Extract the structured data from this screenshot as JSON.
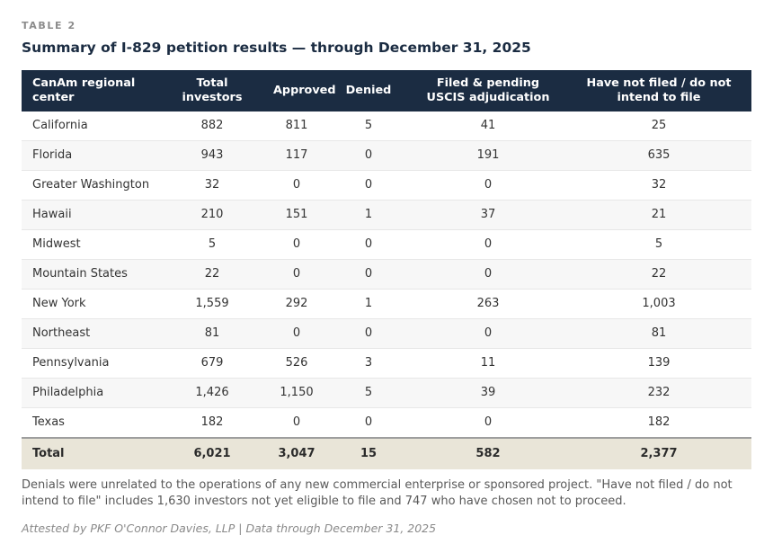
{
  "header": {
    "eyebrow": "TABLE 2",
    "title": "Summary of I-829 petition results — through December 31, 2025"
  },
  "table": {
    "columns": [
      "CanAm regional center",
      "Total investors",
      "Approved",
      "Denied",
      "Filed & pending USCIS adjudication",
      "Have not filed / do not intend to file"
    ],
    "rows": [
      [
        "California",
        "882",
        "811",
        "5",
        "41",
        "25"
      ],
      [
        "Florida",
        "943",
        "117",
        "0",
        "191",
        "635"
      ],
      [
        "Greater Washington",
        "32",
        "0",
        "0",
        "0",
        "32"
      ],
      [
        "Hawaii",
        "210",
        "151",
        "1",
        "37",
        "21"
      ],
      [
        "Midwest",
        "5",
        "0",
        "0",
        "0",
        "5"
      ],
      [
        "Mountain States",
        "22",
        "0",
        "0",
        "0",
        "22"
      ],
      [
        "New York",
        "1,559",
        "292",
        "1",
        "263",
        "1,003"
      ],
      [
        "Northeast",
        "81",
        "0",
        "0",
        "0",
        "81"
      ],
      [
        "Pennsylvania",
        "679",
        "526",
        "3",
        "11",
        "139"
      ],
      [
        "Philadelphia",
        "1,426",
        "1,150",
        "5",
        "39",
        "232"
      ],
      [
        "Texas",
        "182",
        "0",
        "0",
        "0",
        "182"
      ]
    ],
    "total": [
      "Total",
      "6,021",
      "3,047",
      "15",
      "582",
      "2,377"
    ]
  },
  "footnote": "Denials were unrelated to the operations of any new commercial enterprise or sponsored project. \"Have not filed / do not intend to file\" includes 1,630 investors not yet eligible to file and 747 who have chosen not to proceed.",
  "attribution": "Attested by PKF O'Connor Davies, LLP | Data through December 31, 2025",
  "colors": {
    "header_bg": "#1b2c42",
    "title_text": "#1b2c42",
    "zebra_stripe": "#f7f7f7",
    "total_row_bg": "#e9e5d8",
    "total_border": "#9e9e9e",
    "note_text": "#595959",
    "attribution_text": "#8a8a8a",
    "eyebrow_text": "#8c8c8c"
  },
  "chart_data": {
    "type": "table",
    "title": "Summary of I-829 petition results — through December 31, 2025",
    "columns": [
      "CanAm regional center",
      "Total investors",
      "Approved",
      "Denied",
      "Filed & pending USCIS adjudication",
      "Have not filed / do not intend to file"
    ],
    "rows": [
      {
        "center": "California",
        "total_investors": 882,
        "approved": 811,
        "denied": 5,
        "filed_pending": 41,
        "not_filed": 25
      },
      {
        "center": "Florida",
        "total_investors": 943,
        "approved": 117,
        "denied": 0,
        "filed_pending": 191,
        "not_filed": 635
      },
      {
        "center": "Greater Washington",
        "total_investors": 32,
        "approved": 0,
        "denied": 0,
        "filed_pending": 0,
        "not_filed": 32
      },
      {
        "center": "Hawaii",
        "total_investors": 210,
        "approved": 151,
        "denied": 1,
        "filed_pending": 37,
        "not_filed": 21
      },
      {
        "center": "Midwest",
        "total_investors": 5,
        "approved": 0,
        "denied": 0,
        "filed_pending": 0,
        "not_filed": 5
      },
      {
        "center": "Mountain States",
        "total_investors": 22,
        "approved": 0,
        "denied": 0,
        "filed_pending": 0,
        "not_filed": 22
      },
      {
        "center": "New York",
        "total_investors": 1559,
        "approved": 292,
        "denied": 1,
        "filed_pending": 263,
        "not_filed": 1003
      },
      {
        "center": "Northeast",
        "total_investors": 81,
        "approved": 0,
        "denied": 0,
        "filed_pending": 0,
        "not_filed": 81
      },
      {
        "center": "Pennsylvania",
        "total_investors": 679,
        "approved": 526,
        "denied": 3,
        "filed_pending": 11,
        "not_filed": 139
      },
      {
        "center": "Philadelphia",
        "total_investors": 1426,
        "approved": 1150,
        "denied": 5,
        "filed_pending": 39,
        "not_filed": 232
      },
      {
        "center": "Texas",
        "total_investors": 182,
        "approved": 0,
        "denied": 0,
        "filed_pending": 0,
        "not_filed": 182
      }
    ],
    "total": {
      "center": "Total",
      "total_investors": 6021,
      "approved": 3047,
      "denied": 15,
      "filed_pending": 582,
      "not_filed": 2377
    }
  }
}
